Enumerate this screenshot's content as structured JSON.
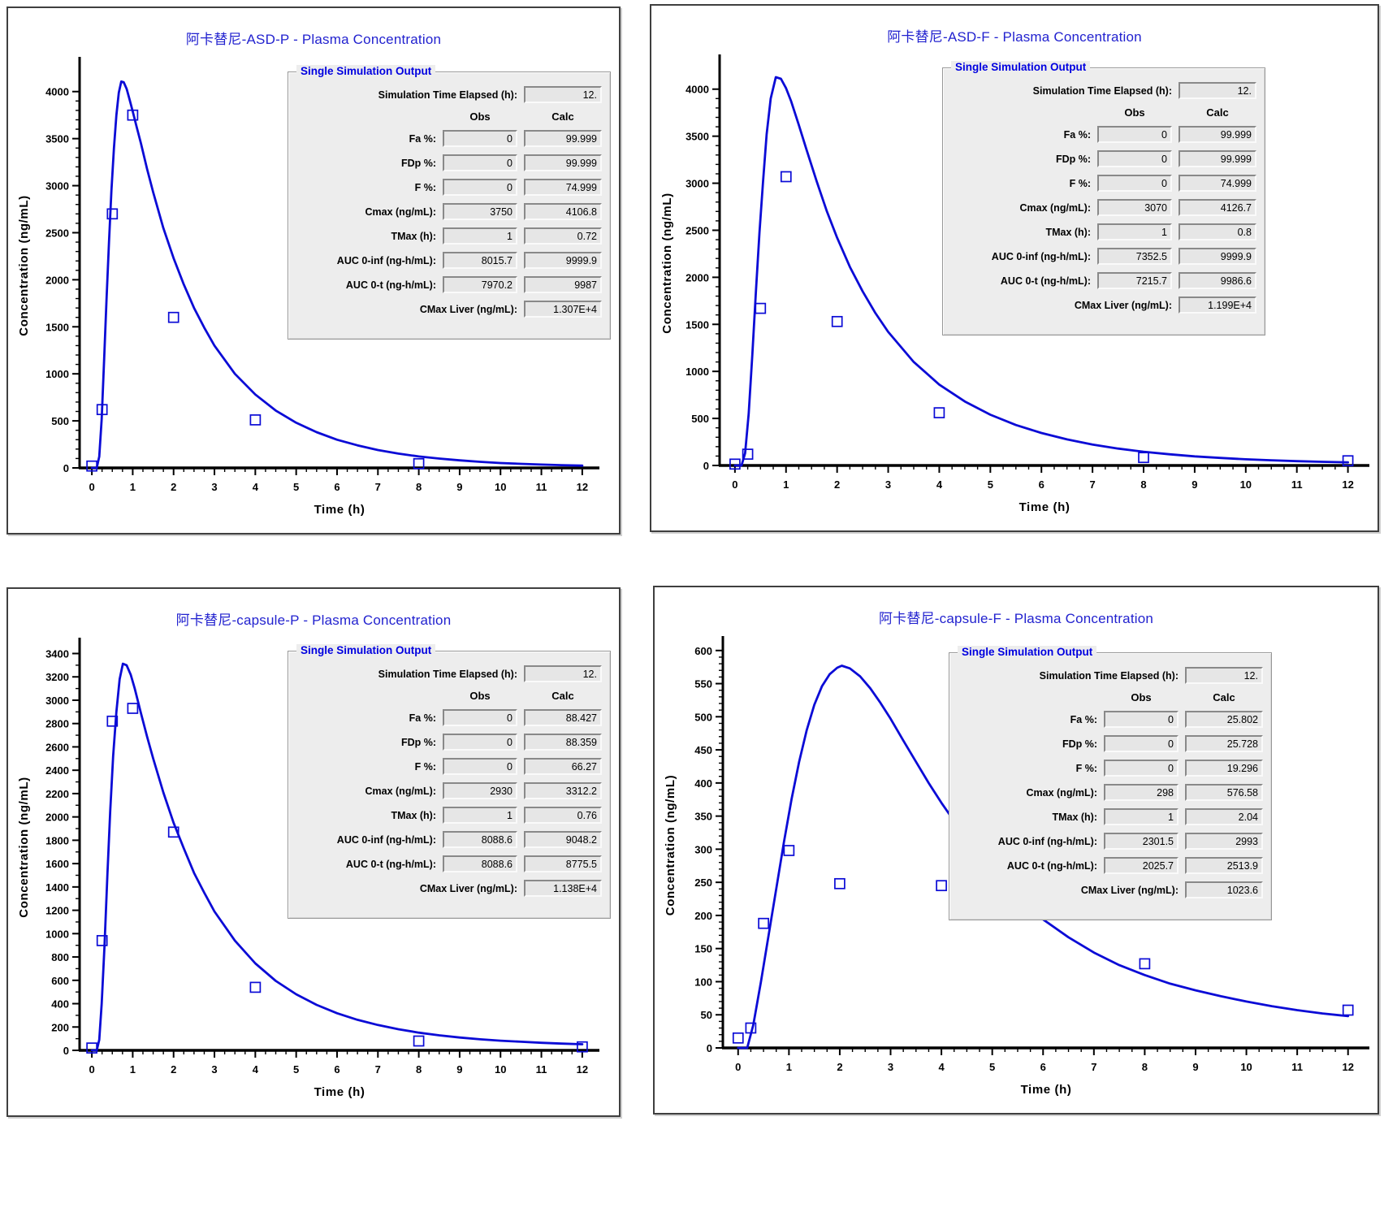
{
  "labels": {
    "sim_box_title": "Single Simulation Output",
    "sim_time_label": "Simulation Time Elapsed (h):",
    "obs_header": "Obs",
    "calc_header": "Calc",
    "row_labels": [
      "Fa %:",
      "FDp %:",
      "F %:",
      "Cmax (ng/mL):",
      "TMax (h):",
      "AUC 0-inf (ng-h/mL):",
      "AUC 0-t (ng-h/mL):",
      "CMax Liver (ng/mL):"
    ]
  },
  "colors": {
    "title_blue": "#2222cf",
    "groupbox_title_blue": "#0000e0",
    "curve_blue": "#0b0bd6",
    "axis_black": "#000000",
    "box_background": "#ededed",
    "field_background": "#e6e6e6"
  },
  "chart_data": [
    {
      "id": "asd-p",
      "type": "line",
      "title": "阿卡替尼-ASD-P - Plasma Concentration",
      "xlabel": "Time (h)",
      "ylabel": "Concentration (ng/mL)",
      "xlim": [
        -0.3,
        12.42
      ],
      "ylim": [
        0,
        4300
      ],
      "xticks": [
        0,
        1,
        2,
        3,
        4,
        5,
        6,
        7,
        8,
        9,
        10,
        11,
        12
      ],
      "yticks": [
        0,
        500,
        1000,
        1500,
        2000,
        2500,
        3000,
        3500,
        4000
      ],
      "x_minor_step": 0.25,
      "y_minor_step": 100,
      "grid": false,
      "series": [
        {
          "name": "Calc (simulated curve)",
          "style": "line",
          "x": [
            0,
            0.12,
            0.18,
            0.24,
            0.3,
            0.36,
            0.42,
            0.48,
            0.54,
            0.6,
            0.66,
            0.72,
            0.78,
            0.85,
            0.92,
            1.0,
            1.1,
            1.2,
            1.35,
            1.5,
            1.75,
            2.0,
            2.25,
            2.5,
            2.75,
            3.0,
            3.5,
            4.0,
            4.5,
            5.0,
            5.5,
            6.0,
            6.5,
            7.0,
            7.5,
            8.0,
            8.5,
            9.0,
            9.5,
            10.0,
            10.5,
            11.0,
            11.5,
            12.0
          ],
          "y": [
            0,
            0,
            120,
            520,
            1150,
            1800,
            2400,
            2950,
            3400,
            3750,
            3990,
            4107,
            4100,
            4030,
            3920,
            3790,
            3620,
            3450,
            3180,
            2930,
            2550,
            2230,
            1950,
            1700,
            1490,
            1300,
            1000,
            780,
            610,
            480,
            380,
            300,
            240,
            190,
            152,
            122,
            99,
            80,
            65,
            52,
            43,
            35,
            29,
            24
          ]
        },
        {
          "name": "Obs (observed points)",
          "style": "square-scatter",
          "x": [
            0,
            0.25,
            0.5,
            1,
            2,
            4,
            8
          ],
          "y": [
            20,
            620,
            2700,
            3750,
            1600,
            510,
            45
          ]
        }
      ],
      "sim_output": {
        "sim_time_elapsed": "12.",
        "rows": [
          {
            "obs": "0",
            "calc": "99.999"
          },
          {
            "obs": "0",
            "calc": "99.999"
          },
          {
            "obs": "0",
            "calc": "74.999"
          },
          {
            "obs": "3750",
            "calc": "4106.8"
          },
          {
            "obs": "1",
            "calc": "0.72"
          },
          {
            "obs": "8015.7",
            "calc": "9999.9"
          },
          {
            "obs": "7970.2",
            "calc": "9987"
          },
          {
            "obs": null,
            "calc": "1.307E+4"
          }
        ]
      }
    },
    {
      "id": "asd-f",
      "type": "line",
      "title": "阿卡替尼-ASD-F - Plasma Concentration",
      "xlabel": "Time (h)",
      "ylabel": "Concentration (ng/mL)",
      "xlim": [
        -0.3,
        12.42
      ],
      "ylim": [
        0,
        4300
      ],
      "xticks": [
        0,
        1,
        2,
        3,
        4,
        5,
        6,
        7,
        8,
        9,
        10,
        11,
        12
      ],
      "yticks": [
        0,
        500,
        1000,
        1500,
        2000,
        2500,
        3000,
        3500,
        4000
      ],
      "x_minor_step": 0.25,
      "y_minor_step": 100,
      "grid": false,
      "series": [
        {
          "name": "Calc (simulated curve)",
          "style": "line",
          "x": [
            0,
            0.13,
            0.2,
            0.27,
            0.34,
            0.41,
            0.48,
            0.55,
            0.62,
            0.7,
            0.8,
            0.9,
            1.0,
            1.1,
            1.25,
            1.4,
            1.6,
            1.8,
            2.0,
            2.25,
            2.5,
            2.75,
            3.0,
            3.5,
            4.0,
            4.5,
            5.0,
            5.5,
            6.0,
            6.5,
            7.0,
            7.5,
            8.0,
            8.5,
            9.0,
            9.5,
            10.0,
            10.5,
            11.0,
            11.5,
            12.0
          ],
          "y": [
            0,
            0,
            130,
            550,
            1180,
            1850,
            2480,
            3020,
            3520,
            3900,
            4127,
            4110,
            4010,
            3870,
            3620,
            3360,
            3020,
            2700,
            2420,
            2110,
            1850,
            1620,
            1420,
            1100,
            860,
            680,
            540,
            430,
            345,
            277,
            223,
            180,
            146,
            119,
            97,
            80,
            66,
            55,
            46,
            39,
            33
          ]
        },
        {
          "name": "Obs (observed points)",
          "style": "square-scatter",
          "x": [
            0,
            0.25,
            0.5,
            1,
            2,
            4,
            8,
            12
          ],
          "y": [
            15,
            120,
            1670,
            3070,
            1530,
            560,
            85,
            50
          ]
        }
      ],
      "sim_output": {
        "sim_time_elapsed": "12.",
        "rows": [
          {
            "obs": "0",
            "calc": "99.999"
          },
          {
            "obs": "0",
            "calc": "99.999"
          },
          {
            "obs": "0",
            "calc": "74.999"
          },
          {
            "obs": "3070",
            "calc": "4126.7"
          },
          {
            "obs": "1",
            "calc": "0.8"
          },
          {
            "obs": "7352.5",
            "calc": "9999.9"
          },
          {
            "obs": "7215.7",
            "calc": "9986.6"
          },
          {
            "obs": null,
            "calc": "1.199E+4"
          }
        ]
      }
    },
    {
      "id": "capsule-p",
      "type": "line",
      "title": "阿卡替尼-capsule-P - Plasma Concentration",
      "xlabel": "Time (h)",
      "ylabel": "Concentration (ng/mL)",
      "xlim": [
        -0.3,
        12.42
      ],
      "ylim": [
        0,
        3480
      ],
      "xticks": [
        0,
        1,
        2,
        3,
        4,
        5,
        6,
        7,
        8,
        9,
        10,
        11,
        12
      ],
      "yticks": [
        0,
        200,
        400,
        600,
        800,
        1000,
        1200,
        1400,
        1600,
        1800,
        2000,
        2200,
        2400,
        2600,
        2800,
        3000,
        3200,
        3400
      ],
      "x_minor_step": 0.25,
      "y_minor_step": 100,
      "grid": false,
      "series": [
        {
          "name": "Calc (simulated curve)",
          "style": "line",
          "x": [
            0,
            0.12,
            0.18,
            0.24,
            0.31,
            0.38,
            0.45,
            0.52,
            0.6,
            0.68,
            0.76,
            0.85,
            0.95,
            1.05,
            1.2,
            1.35,
            1.5,
            1.75,
            2.0,
            2.25,
            2.5,
            2.75,
            3.0,
            3.5,
            4.0,
            4.5,
            5.0,
            5.5,
            6.0,
            6.5,
            7.0,
            7.5,
            8.0,
            8.5,
            9.0,
            9.5,
            10.0,
            10.5,
            11.0,
            11.5,
            12.0
          ],
          "y": [
            0,
            0,
            90,
            400,
            900,
            1500,
            2050,
            2520,
            2900,
            3180,
            3312,
            3300,
            3220,
            3100,
            2890,
            2690,
            2500,
            2210,
            1950,
            1730,
            1520,
            1350,
            1190,
            940,
            745,
            595,
            480,
            390,
            318,
            262,
            217,
            181,
            152,
            129,
            110,
            95,
            83,
            74,
            65,
            58,
            52
          ]
        },
        {
          "name": "Obs (observed points)",
          "style": "square-scatter",
          "x": [
            0,
            0.25,
            0.5,
            1,
            2,
            4,
            8,
            12
          ],
          "y": [
            20,
            940,
            2820,
            2930,
            1870,
            540,
            80,
            30
          ]
        }
      ],
      "sim_output": {
        "sim_time_elapsed": "12.",
        "rows": [
          {
            "obs": "0",
            "calc": "88.427"
          },
          {
            "obs": "0",
            "calc": "88.359"
          },
          {
            "obs": "0",
            "calc": "66.27"
          },
          {
            "obs": "2930",
            "calc": "3312.2"
          },
          {
            "obs": "1",
            "calc": "0.76"
          },
          {
            "obs": "8088.6",
            "calc": "9048.2"
          },
          {
            "obs": "8088.6",
            "calc": "8775.5"
          },
          {
            "obs": null,
            "calc": "1.138E+4"
          }
        ]
      }
    },
    {
      "id": "capsule-f",
      "type": "line",
      "title": "阿卡替尼-capsule-F - Plasma Concentration",
      "xlabel": "Time (h)",
      "ylabel": "Concentration (ng/mL)",
      "xlim": [
        -0.3,
        12.42
      ],
      "ylim": [
        0,
        612
      ],
      "xticks": [
        0,
        1,
        2,
        3,
        4,
        5,
        6,
        7,
        8,
        9,
        10,
        11,
        12
      ],
      "yticks": [
        0,
        50,
        100,
        150,
        200,
        250,
        300,
        350,
        400,
        450,
        500,
        550,
        600
      ],
      "x_minor_step": 0.25,
      "y_minor_step": 10,
      "grid": false,
      "series": [
        {
          "name": "Calc (simulated curve)",
          "style": "line",
          "x": [
            0,
            0.18,
            0.3,
            0.45,
            0.6,
            0.75,
            0.9,
            1.05,
            1.2,
            1.35,
            1.5,
            1.65,
            1.8,
            1.95,
            2.04,
            2.2,
            2.4,
            2.6,
            2.8,
            3.0,
            3.25,
            3.5,
            3.75,
            4.0,
            4.5,
            5.0,
            5.5,
            6.0,
            6.5,
            7.0,
            7.5,
            8.0,
            8.5,
            9.0,
            9.5,
            10.0,
            10.5,
            11.0,
            11.5,
            12.0
          ],
          "y": [
            0,
            0,
            35,
            100,
            170,
            240,
            310,
            375,
            432,
            480,
            518,
            546,
            564,
            574,
            577,
            573,
            561,
            543,
            521,
            497,
            464,
            432,
            400,
            370,
            315,
            267,
            227,
            194,
            167,
            144,
            125,
            110,
            97,
            87,
            78,
            70,
            63,
            57,
            52,
            48
          ]
        },
        {
          "name": "Obs (observed points)",
          "style": "square-scatter",
          "x": [
            0,
            0.25,
            0.5,
            1,
            2,
            4,
            8,
            12
          ],
          "y": [
            15,
            30,
            188,
            298,
            248,
            245,
            127,
            57
          ]
        }
      ],
      "sim_output": {
        "sim_time_elapsed": "12.",
        "rows": [
          {
            "obs": "0",
            "calc": "25.802"
          },
          {
            "obs": "0",
            "calc": "25.728"
          },
          {
            "obs": "0",
            "calc": "19.296"
          },
          {
            "obs": "298",
            "calc": "576.58"
          },
          {
            "obs": "1",
            "calc": "2.04"
          },
          {
            "obs": "2301.5",
            "calc": "2993"
          },
          {
            "obs": "2025.7",
            "calc": "2513.9"
          },
          {
            "obs": null,
            "calc": "1023.6"
          }
        ]
      }
    }
  ]
}
